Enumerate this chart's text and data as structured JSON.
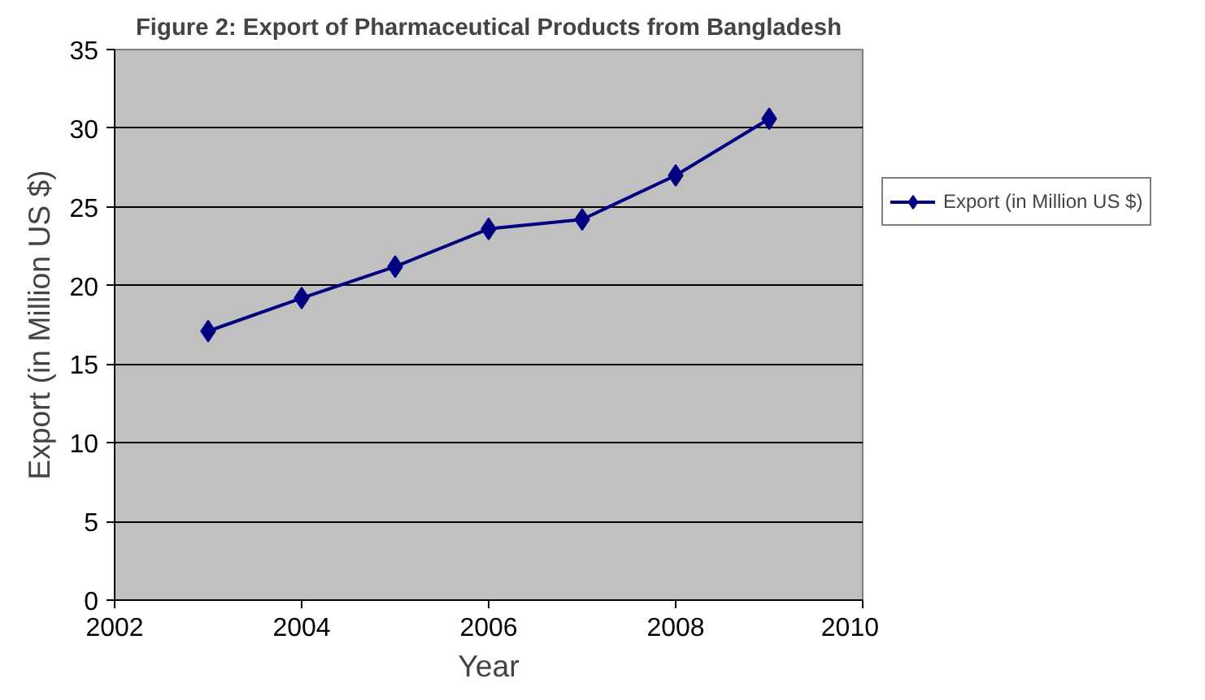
{
  "chart_data": {
    "type": "line",
    "title": "Figure 2: Export of Pharmaceutical Products from Bangladesh",
    "xlabel": "Year",
    "ylabel": "Export (in Million US $)",
    "x": [
      2003,
      2004,
      2005,
      2006,
      2007,
      2008,
      2009
    ],
    "series": [
      {
        "name": "Export (in Million US $)",
        "color": "#000080",
        "values": [
          17.1,
          19.2,
          21.2,
          23.6,
          24.2,
          27.0,
          30.6
        ]
      }
    ],
    "xlim": [
      2002,
      2010
    ],
    "xticks": [
      2002,
      2004,
      2006,
      2008,
      2010
    ],
    "ylim": [
      0,
      35
    ],
    "yticks": [
      0,
      5,
      10,
      15,
      20,
      25,
      30,
      35
    ],
    "grid": "y",
    "legend": "right",
    "marker": "diamond",
    "line_style": "solid"
  }
}
